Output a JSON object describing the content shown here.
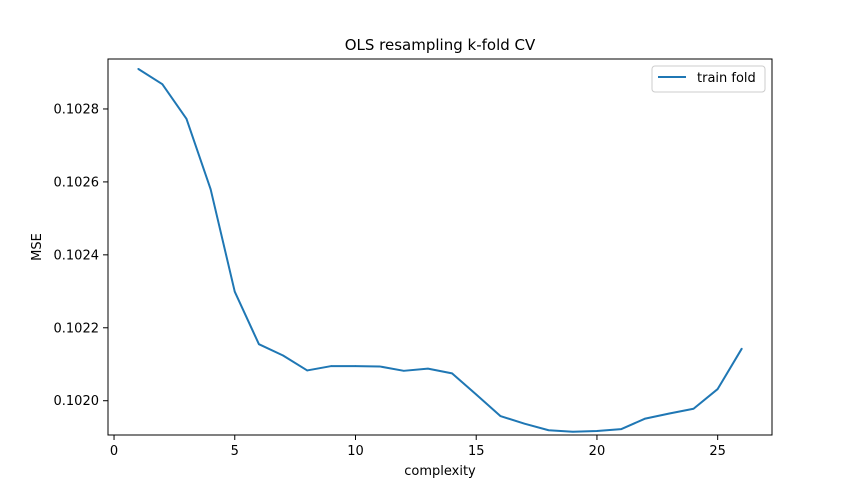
{
  "chart_data": {
    "type": "line",
    "title": "OLS resampling k-fold CV",
    "xlabel": "complexity",
    "ylabel": "MSE",
    "xlim": [
      -0.25,
      27.25
    ],
    "ylim": [
      0.101906,
      0.102937
    ],
    "xticks": [
      0,
      5,
      10,
      15,
      20,
      25
    ],
    "xtick_labels": [
      "0",
      "5",
      "10",
      "15",
      "20",
      "25"
    ],
    "yticks": [
      0.102,
      0.1022,
      0.1024,
      0.1026,
      0.1028
    ],
    "ytick_labels": [
      "0.1020",
      "0.1022",
      "0.1024",
      "0.1026",
      "0.1028"
    ],
    "grid": false,
    "legend": {
      "position": "top-right",
      "entries": [
        "train fold"
      ]
    },
    "series": [
      {
        "name": "train fold",
        "color": "#1f77b4",
        "x": [
          1,
          2,
          3,
          4,
          5,
          6,
          7,
          8,
          9,
          10,
          11,
          12,
          13,
          14,
          15,
          16,
          17,
          18,
          19,
          20,
          21,
          22,
          23,
          24,
          25,
          26
        ],
        "y": [
          0.10291,
          0.102868,
          0.102773,
          0.10258,
          0.102299,
          0.102155,
          0.102124,
          0.102083,
          0.102095,
          0.102095,
          0.102094,
          0.102082,
          0.102088,
          0.102075,
          0.102017,
          0.101958,
          0.101937,
          0.101919,
          0.101915,
          0.101917,
          0.101922,
          0.101951,
          0.101965,
          0.101978,
          0.102032,
          0.102143
        ]
      }
    ]
  }
}
